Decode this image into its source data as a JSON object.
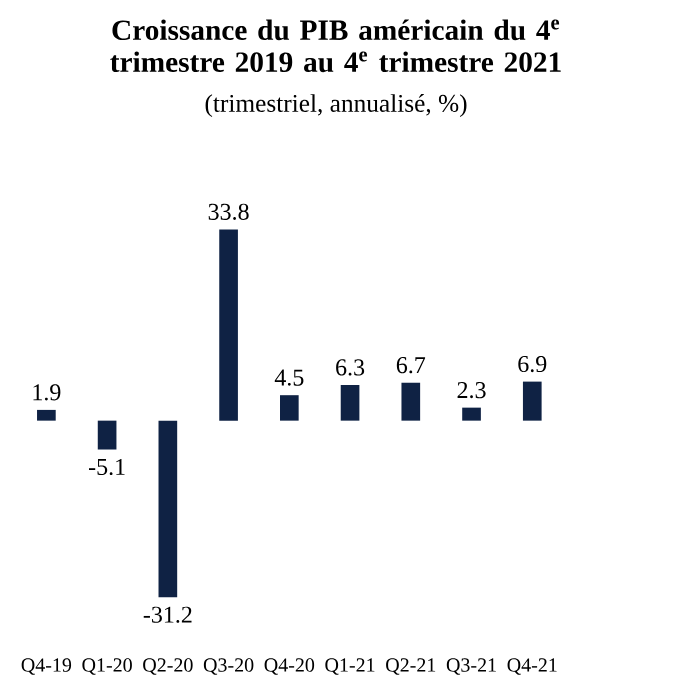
{
  "chart_data": {
    "type": "bar",
    "title": "Croissance du PIB américain du 4$^{e}$ trimestre 2019 au 4$^{e}$ trimestre 2021",
    "subtitle": "(trimestriel, annualisé, %)",
    "categories": [
      "Q4-19",
      "Q1-20",
      "Q2-20",
      "Q3-20",
      "Q4-20",
      "Q1-21",
      "Q2-21",
      "Q3-21",
      "Q4-21"
    ],
    "values": [
      1.9,
      -5.1,
      -31.2,
      33.8,
      4.5,
      6.3,
      6.7,
      2.3,
      6.9
    ],
    "color": "#0f2244",
    "data_labels": true
  }
}
